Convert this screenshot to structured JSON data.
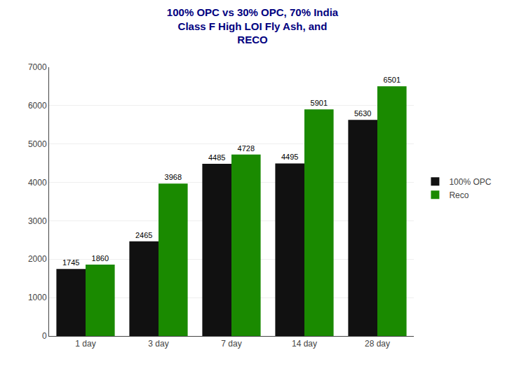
{
  "chart_data": {
    "type": "bar",
    "title": "100% OPC vs 30% OPC, 70% India\nClass F High LOI Fly Ash, and\nRECO",
    "categories": [
      "1 day",
      "3 day",
      "7 day",
      "14 day",
      "28 day"
    ],
    "series": [
      {
        "name": "100% OPC",
        "color": "#111111",
        "values": [
          1745,
          2465,
          4485,
          4495,
          5630
        ]
      },
      {
        "name": "Reco",
        "color": "#1a8a00",
        "values": [
          1860,
          3968,
          4728,
          5901,
          6501
        ]
      }
    ],
    "ylim": [
      0,
      7000
    ],
    "yticks": [
      0,
      1000,
      2000,
      3000,
      4000,
      5000,
      6000,
      7000
    ],
    "grid": true,
    "legend": "right",
    "data_labels": true
  }
}
